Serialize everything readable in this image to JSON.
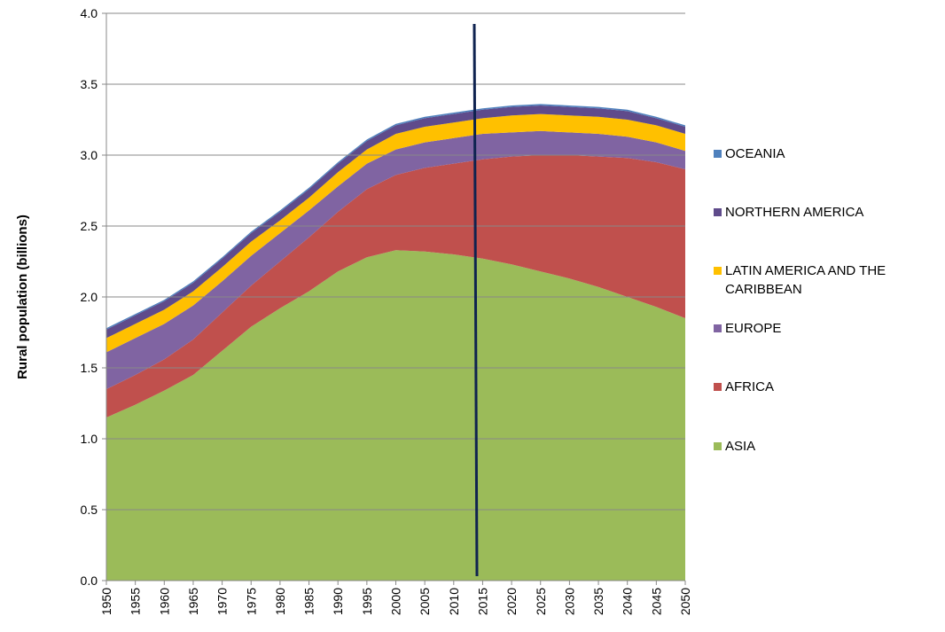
{
  "chart_data": {
    "type": "stacked_area",
    "ylabel": "Rural population (billions)",
    "x": [
      1950,
      1955,
      1960,
      1965,
      1970,
      1975,
      1980,
      1985,
      1990,
      1995,
      2000,
      2005,
      2010,
      2015,
      2020,
      2025,
      2030,
      2035,
      2040,
      2045,
      2050
    ],
    "xlim": [
      1950,
      2050
    ],
    "ylim": [
      0,
      4
    ],
    "yticks": [
      {
        "value": 0,
        "label": "0.0"
      },
      0.5,
      {
        "value": 1,
        "label": "1.0"
      },
      1.5,
      {
        "value": 2,
        "label": "2.0"
      },
      2.5,
      {
        "value": 3,
        "label": "3.0"
      },
      3.5,
      {
        "value": 4,
        "label": "4.0"
      }
    ],
    "grid": true,
    "legend": "right",
    "series": [
      {
        "name": "ASIA",
        "color": "#9bbb59",
        "values": [
          1.15,
          1.24,
          1.34,
          1.45,
          1.62,
          1.79,
          1.92,
          2.04,
          2.18,
          2.28,
          2.33,
          2.32,
          2.3,
          2.27,
          2.23,
          2.18,
          2.13,
          2.07,
          2.0,
          1.93,
          1.85
        ]
      },
      {
        "name": "AFRICA",
        "color": "#c0504d",
        "values": [
          0.2,
          0.21,
          0.22,
          0.25,
          0.27,
          0.29,
          0.33,
          0.38,
          0.42,
          0.48,
          0.53,
          0.59,
          0.64,
          0.7,
          0.76,
          0.82,
          0.87,
          0.92,
          0.98,
          1.02,
          1.05
        ]
      },
      {
        "name": "EUROPE",
        "color": "#8064a2",
        "values": [
          0.26,
          0.26,
          0.25,
          0.24,
          0.22,
          0.21,
          0.2,
          0.19,
          0.18,
          0.18,
          0.18,
          0.18,
          0.18,
          0.18,
          0.17,
          0.17,
          0.16,
          0.16,
          0.15,
          0.14,
          0.13
        ]
      },
      {
        "name": "LATIN AMERICA AND THE CARIBBEAN",
        "color": "#ffc000",
        "values": [
          0.1,
          0.1,
          0.1,
          0.1,
          0.1,
          0.1,
          0.09,
          0.09,
          0.1,
          0.1,
          0.11,
          0.11,
          0.11,
          0.11,
          0.12,
          0.12,
          0.12,
          0.12,
          0.12,
          0.12,
          0.12
        ]
      },
      {
        "name": "NORTHERN AMERICA",
        "color": "#5f4b8b",
        "values": [
          0.06,
          0.06,
          0.06,
          0.06,
          0.06,
          0.06,
          0.06,
          0.06,
          0.06,
          0.06,
          0.06,
          0.06,
          0.06,
          0.06,
          0.06,
          0.06,
          0.06,
          0.06,
          0.06,
          0.05,
          0.05
        ]
      },
      {
        "name": "OCEANIA",
        "color": "#4f81bd",
        "values": [
          0.01,
          0.01,
          0.01,
          0.01,
          0.01,
          0.01,
          0.01,
          0.01,
          0.01,
          0.01,
          0.01,
          0.01,
          0.01,
          0.01,
          0.01,
          0.01,
          0.01,
          0.01,
          0.01,
          0.01,
          0.01
        ]
      }
    ]
  }
}
